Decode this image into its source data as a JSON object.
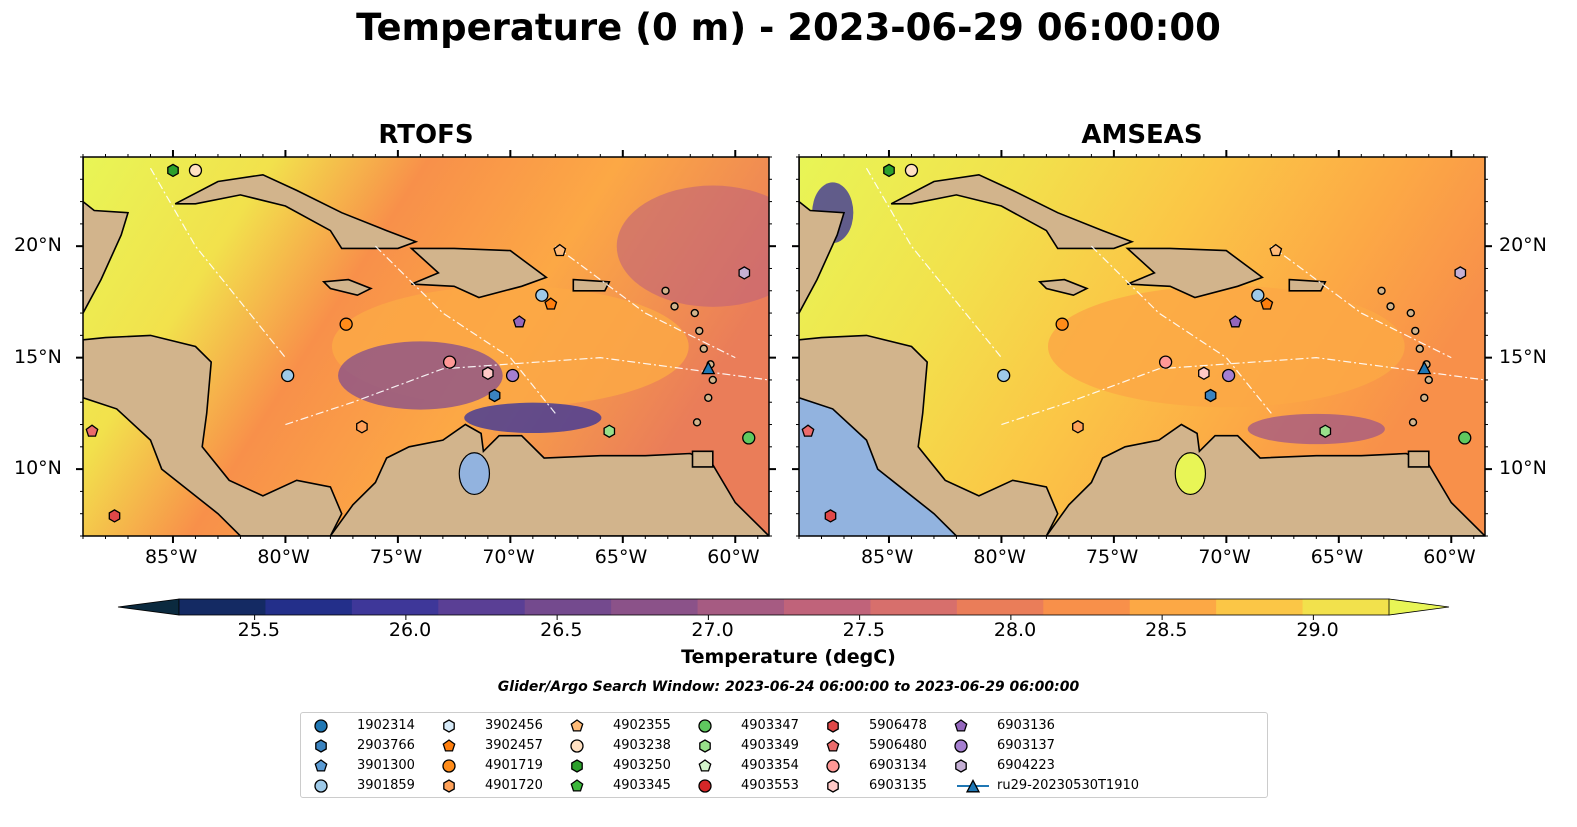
{
  "title": "Temperature (0 m) - 2023-06-29 06:00:00",
  "panels": [
    {
      "title": "RTOFS"
    },
    {
      "title": "AMSEAS"
    }
  ],
  "map": {
    "lon_range": [
      -89,
      -58.5
    ],
    "lat_range": [
      7,
      24
    ],
    "lon_ticks": [
      -85,
      -80,
      -75,
      -70,
      -65,
      -60
    ],
    "lon_tick_labels": [
      "85°W",
      "80°W",
      "75°W",
      "70°W",
      "65°W",
      "60°W"
    ],
    "lat_ticks": [
      10,
      15,
      20
    ],
    "lat_tick_labels": [
      "10°N",
      "15°N",
      "20°N"
    ],
    "land_color": "#d2b48c",
    "lake_color": "#92b3df"
  },
  "colorbar": {
    "label": "Temperature (degC)",
    "min": 25.25,
    "max": 29.25,
    "ticks": [
      25.5,
      26.0,
      26.5,
      27.0,
      27.5,
      28.0,
      28.5,
      29.0
    ],
    "tick_labels": [
      "25.5",
      "26.0",
      "26.5",
      "27.0",
      "27.5",
      "28.0",
      "28.5",
      "29.0"
    ],
    "colors": [
      "#0b2a3f",
      "#142a63",
      "#232f8a",
      "#3e3799",
      "#5a3f95",
      "#744a8e",
      "#8b5289",
      "#a65b82",
      "#c0637a",
      "#d76f6c",
      "#ea7d59",
      "#f8904a",
      "#fca845",
      "#fbc646",
      "#f2e14c",
      "#e8f556"
    ]
  },
  "search_window": "Glider/Argo Search Window: 2023-06-24 06:00:00 to 2023-06-29 06:00:00",
  "legend": {
    "items": [
      {
        "label": "1902314",
        "marker": "circle",
        "color": "#1f77b4"
      },
      {
        "label": "2903766",
        "marker": "hexagon",
        "color": "#3a83c0"
      },
      {
        "label": "3901300",
        "marker": "pentagon",
        "color": "#5a9bd4"
      },
      {
        "label": "3901859",
        "marker": "circle",
        "color": "#9ecae9"
      },
      {
        "label": "3902456",
        "marker": "hexagon",
        "color": "#d6eaf8"
      },
      {
        "label": "3902457",
        "marker": "pentagon",
        "color": "#ff7f0e"
      },
      {
        "label": "4901719",
        "marker": "circle",
        "color": "#ff8c1a"
      },
      {
        "label": "4901720",
        "marker": "hexagon",
        "color": "#ffa25a"
      },
      {
        "label": "4902355",
        "marker": "pentagon",
        "color": "#ffbb78"
      },
      {
        "label": "4903238",
        "marker": "circle",
        "color": "#ffe0c2"
      },
      {
        "label": "4903250",
        "marker": "hexagon",
        "color": "#2ca02c"
      },
      {
        "label": "4903345",
        "marker": "pentagon",
        "color": "#3cb83c"
      },
      {
        "label": "4903347",
        "marker": "circle",
        "color": "#5fc95f"
      },
      {
        "label": "4903349",
        "marker": "hexagon",
        "color": "#98df8a"
      },
      {
        "label": "4903354",
        "marker": "pentagon",
        "color": "#d4f5cc"
      },
      {
        "label": "4903553",
        "marker": "circle",
        "color": "#d62728"
      },
      {
        "label": "5906478",
        "marker": "hexagon",
        "color": "#e04848"
      },
      {
        "label": "5906480",
        "marker": "pentagon",
        "color": "#eb6b6b"
      },
      {
        "label": "6903134",
        "marker": "circle",
        "color": "#ff9896"
      },
      {
        "label": "6903135",
        "marker": "hexagon",
        "color": "#ffc9c7"
      },
      {
        "label": "6903136",
        "marker": "pentagon",
        "color": "#9467bd"
      },
      {
        "label": "6903137",
        "marker": "circle",
        "color": "#a57fd0"
      },
      {
        "label": "6904223",
        "marker": "hexagon",
        "color": "#c5b0d5"
      },
      {
        "label": "ru29-20230530T1910",
        "marker": "triangle-line",
        "color": "#1f77b4"
      }
    ]
  },
  "floats": [
    {
      "id": "4903250",
      "lon": -85.0,
      "lat": 23.4
    },
    {
      "id": "4903238",
      "lon": -84.0,
      "lat": 23.4
    },
    {
      "id": "4902355",
      "lon": -67.8,
      "lat": 19.8
    },
    {
      "id": "6904223",
      "lon": -59.6,
      "lat": 18.8
    },
    {
      "id": "3901859",
      "lon": -68.6,
      "lat": 17.8
    },
    {
      "id": "3902457",
      "lon": -68.2,
      "lat": 17.4
    },
    {
      "id": "6903136",
      "lon": -69.6,
      "lat": 16.6
    },
    {
      "id": "4901719",
      "lon": -77.3,
      "lat": 16.5
    },
    {
      "id": "ru29-20230530T1910",
      "lon": -61.2,
      "lat": 14.5
    },
    {
      "id": "6903134",
      "lon": -72.7,
      "lat": 14.8
    },
    {
      "id": "6903135",
      "lon": -71.0,
      "lat": 14.3
    },
    {
      "id": "6903137",
      "lon": -69.9,
      "lat": 14.2
    },
    {
      "id": "3901859",
      "lon": -79.9,
      "lat": 14.2
    },
    {
      "id": "2903766",
      "lon": -70.7,
      "lat": 13.3
    },
    {
      "id": "4901720",
      "lon": -76.6,
      "lat": 11.9
    },
    {
      "id": "4903349",
      "lon": -65.6,
      "lat": 11.7
    },
    {
      "id": "4903347",
      "lon": -59.4,
      "lat": 11.4
    },
    {
      "id": "5906480",
      "lon": -88.6,
      "lat": 11.7
    },
    {
      "id": "5906478",
      "lon": -87.6,
      "lat": 7.9
    }
  ]
}
